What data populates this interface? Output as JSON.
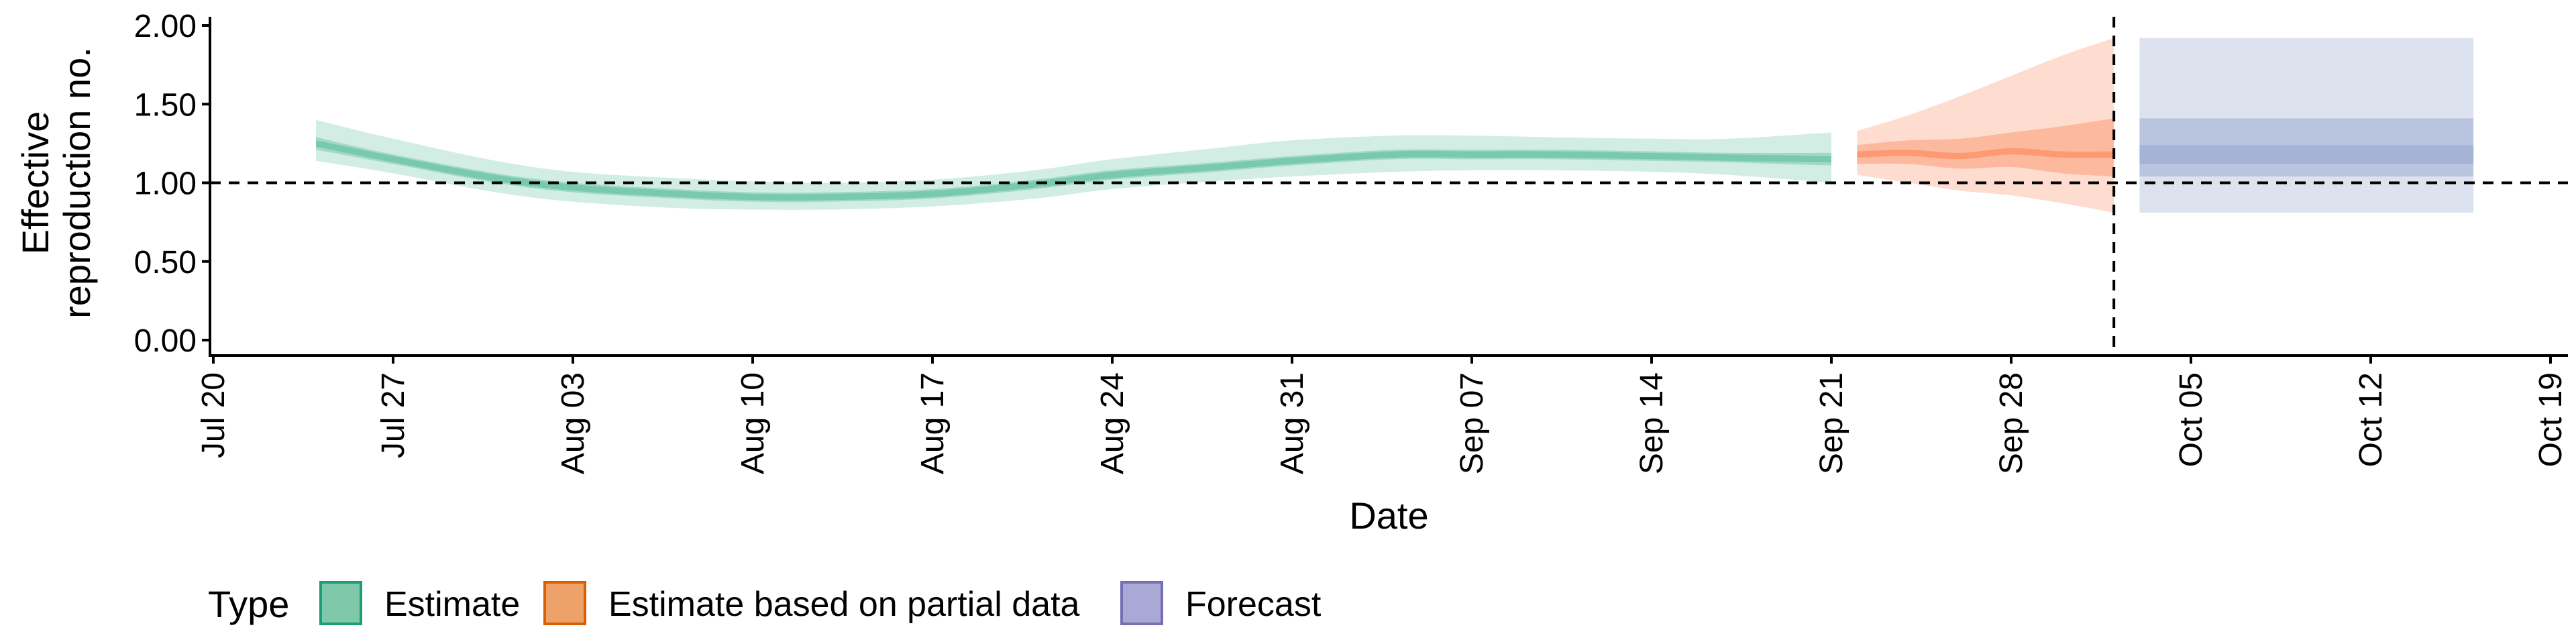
{
  "chart_data": {
    "type": "area",
    "title": "",
    "xlabel": "Date",
    "ylabel": "Effective reproduction no.",
    "ylabel_lines": [
      "Effective",
      "reproduction no."
    ],
    "ylim": [
      0,
      2
    ],
    "y_ticks": [
      "0.00",
      "0.50",
      "1.00",
      "1.50",
      "2.00"
    ],
    "xlim": [
      "2020-07-19",
      "2020-10-20"
    ],
    "x_ticks": [
      {
        "date": "2020-07-20",
        "label": "Jul 20"
      },
      {
        "date": "2020-07-27",
        "label": "Jul 27"
      },
      {
        "date": "2020-08-03",
        "label": "Aug 03"
      },
      {
        "date": "2020-08-10",
        "label": "Aug 10"
      },
      {
        "date": "2020-08-17",
        "label": "Aug 17"
      },
      {
        "date": "2020-08-24",
        "label": "Aug 24"
      },
      {
        "date": "2020-08-31",
        "label": "Aug 31"
      },
      {
        "date": "2020-09-07",
        "label": "Sep 07"
      },
      {
        "date": "2020-09-14",
        "label": "Sep 14"
      },
      {
        "date": "2020-09-21",
        "label": "Sep 21"
      },
      {
        "date": "2020-09-28",
        "label": "Sep 28"
      },
      {
        "date": "2020-10-05",
        "label": "Oct 05"
      },
      {
        "date": "2020-10-12",
        "label": "Oct 12"
      },
      {
        "date": "2020-10-19",
        "label": "Oct 19"
      }
    ],
    "reference_line_y": 1.0,
    "forecast_start_line": "2020-10-02",
    "legend": {
      "title": "Type",
      "position": "bottom-left",
      "entries": [
        {
          "label": "Estimate",
          "fill": "#7fc8a9",
          "stroke": "#1b9e77"
        },
        {
          "label": "Estimate based on partial data",
          "fill": "#eea26a",
          "stroke": "#d95f02"
        },
        {
          "label": "Forecast",
          "fill": "#aaa8d4",
          "stroke": "#7570b3"
        }
      ]
    },
    "series": [
      {
        "name": "Estimate",
        "color": "#66c2a5",
        "dates": [
          "2020-07-24",
          "2020-07-27",
          "2020-07-31",
          "2020-08-03",
          "2020-08-07",
          "2020-08-10",
          "2020-08-13",
          "2020-08-17",
          "2020-08-21",
          "2020-08-24",
          "2020-08-28",
          "2020-08-31",
          "2020-09-04",
          "2020-09-07",
          "2020-09-10",
          "2020-09-14",
          "2020-09-17",
          "2020-09-21"
        ],
        "median": [
          1.25,
          1.15,
          1.03,
          0.97,
          0.93,
          0.91,
          0.91,
          0.93,
          0.99,
          1.05,
          1.1,
          1.14,
          1.18,
          1.18,
          1.18,
          1.17,
          1.16,
          1.15
        ],
        "ci50_lower": [
          1.21,
          1.12,
          1.0,
          0.94,
          0.9,
          0.88,
          0.88,
          0.9,
          0.96,
          1.02,
          1.07,
          1.11,
          1.15,
          1.15,
          1.15,
          1.14,
          1.13,
          1.11
        ],
        "ci50_upper": [
          1.29,
          1.18,
          1.06,
          1.0,
          0.96,
          0.94,
          0.94,
          0.96,
          1.02,
          1.08,
          1.13,
          1.17,
          1.21,
          1.21,
          1.21,
          1.2,
          1.19,
          1.19
        ],
        "ci90_lower": [
          1.14,
          1.06,
          0.94,
          0.88,
          0.84,
          0.83,
          0.83,
          0.85,
          0.9,
          0.96,
          1.01,
          1.04,
          1.07,
          1.08,
          1.08,
          1.07,
          1.05,
          1.0
        ],
        "ci90_upper": [
          1.4,
          1.28,
          1.14,
          1.07,
          1.03,
          1.01,
          1.0,
          1.02,
          1.08,
          1.15,
          1.22,
          1.27,
          1.3,
          1.3,
          1.29,
          1.28,
          1.28,
          1.32
        ]
      },
      {
        "name": "Estimate based on partial data",
        "color": "#fc8d62",
        "dates": [
          "2020-09-22",
          "2020-09-24",
          "2020-09-26",
          "2020-09-28",
          "2020-09-30",
          "2020-10-02"
        ],
        "median": [
          1.18,
          1.19,
          1.17,
          1.2,
          1.18,
          1.18
        ],
        "ci50_lower": [
          1.12,
          1.12,
          1.09,
          1.1,
          1.06,
          1.04
        ],
        "ci50_upper": [
          1.24,
          1.27,
          1.28,
          1.32,
          1.36,
          1.41
        ],
        "ci90_lower": [
          1.05,
          1.0,
          0.95,
          0.92,
          0.87,
          0.81
        ],
        "ci90_upper": [
          1.33,
          1.43,
          1.55,
          1.68,
          1.81,
          1.92
        ]
      },
      {
        "name": "Forecast",
        "color": "#8da0cb",
        "dates": [
          "2020-10-03",
          "2020-10-16"
        ],
        "median": [
          1.18,
          1.18
        ],
        "ci20_lower": [
          1.12,
          1.12
        ],
        "ci20_upper": [
          1.24,
          1.24
        ],
        "ci50_lower": [
          1.04,
          1.04
        ],
        "ci50_upper": [
          1.41,
          1.41
        ],
        "ci90_lower": [
          0.81,
          0.81
        ],
        "ci90_upper": [
          1.92,
          1.92
        ]
      }
    ]
  }
}
